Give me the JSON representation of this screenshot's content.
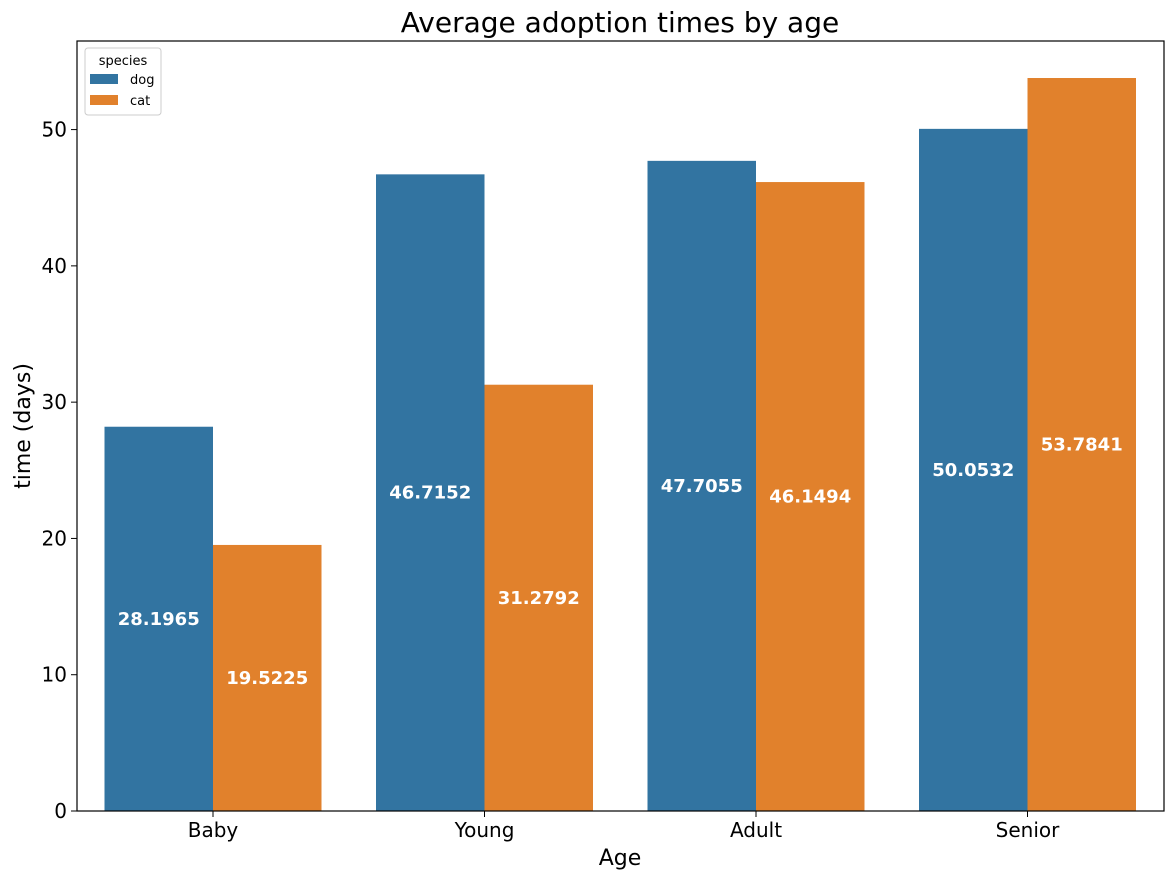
{
  "chart_data": {
    "type": "bar",
    "title": "Average adoption times by age",
    "xlabel": "Age",
    "ylabel": "time (days)",
    "categories": [
      "Baby",
      "Young",
      "Adult",
      "Senior"
    ],
    "series": [
      {
        "name": "dog",
        "values": [
          28.1965,
          46.7152,
          47.7055,
          50.0532
        ],
        "labels": [
          "28.1965",
          "46.7152",
          "47.7055",
          "50.0532"
        ]
      },
      {
        "name": "cat",
        "values": [
          19.5225,
          31.2792,
          46.1494,
          53.7841
        ],
        "labels": [
          "19.5225",
          "31.2792",
          "46.1494",
          "53.7841"
        ]
      }
    ],
    "ylim": [
      0,
      56.5
    ],
    "yticks": [
      0,
      10,
      20,
      30,
      40,
      50
    ],
    "grid": false,
    "legend": {
      "title": "species",
      "placement": "top-left"
    },
    "colors": {
      "dog": "#3274a1",
      "cat": "#e1812c"
    }
  }
}
